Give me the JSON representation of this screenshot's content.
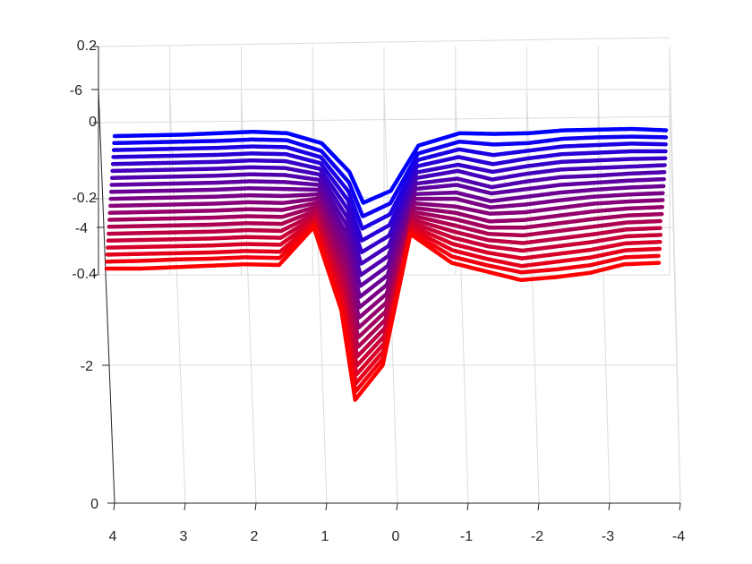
{
  "chart_data": {
    "type": "line",
    "view": "3d",
    "title": "",
    "xlabel": "",
    "ylabel": "",
    "zlabel": "",
    "grid": true,
    "x_range": [
      -4,
      4
    ],
    "y_range": [
      0,
      6
    ],
    "z_range": [
      -0.4,
      0.2
    ],
    "x_ticks": [
      4,
      3,
      2,
      1,
      0,
      -1,
      -2,
      -3,
      -4
    ],
    "x_tick_labels": [
      "4",
      "3",
      "2",
      "1",
      "0",
      "-1",
      "-2",
      "-3",
      "-4"
    ],
    "y_ticks": [
      0,
      2,
      4,
      6
    ],
    "y_tick_labels": [
      "0",
      "-2",
      "-4",
      "-6"
    ],
    "z_ticks": [
      0.2,
      0,
      -0.2,
      -0.4
    ],
    "z_tick_labels": [
      "0.2",
      "0",
      "-0.2",
      "-0.4"
    ],
    "color_start": "#0000ff",
    "color_end": "#ff0000",
    "series_count": 20,
    "x": [
      4,
      3.5,
      3,
      2.5,
      2,
      1.5,
      1,
      0.6,
      0.4,
      0,
      -0.4,
      -1,
      -1.5,
      -2,
      -2.5,
      -3,
      -3.5,
      -4
    ],
    "series": [
      {
        "y": 0.0,
        "values": [
          -0.02,
          -0.015,
          -0.01,
          0.0,
          0.01,
          0.0,
          -0.05,
          -0.17,
          -0.3,
          -0.25,
          -0.06,
          0.0,
          -0.005,
          0.0,
          0.02,
          0.025,
          0.03,
          0.02
        ]
      },
      {
        "y": 0.3,
        "values": [
          -0.03,
          -0.025,
          -0.02,
          -0.015,
          -0.005,
          -0.01,
          -0.06,
          -0.18,
          -0.31,
          -0.26,
          -0.07,
          -0.02,
          -0.04,
          -0.03,
          0.0,
          0.01,
          0.015,
          0.01
        ]
      },
      {
        "y": 0.6,
        "values": [
          -0.045,
          -0.04,
          -0.035,
          -0.03,
          -0.02,
          -0.025,
          -0.07,
          -0.19,
          -0.32,
          -0.27,
          -0.08,
          -0.04,
          -0.08,
          -0.05,
          -0.02,
          -0.01,
          0.0,
          -0.005
        ]
      },
      {
        "y": 0.9,
        "values": [
          -0.06,
          -0.055,
          -0.05,
          -0.045,
          -0.035,
          -0.04,
          -0.08,
          -0.2,
          -0.33,
          -0.28,
          -0.09,
          -0.06,
          -0.11,
          -0.07,
          -0.04,
          -0.03,
          -0.02,
          -0.02
        ]
      },
      {
        "y": 1.2,
        "values": [
          -0.075,
          -0.07,
          -0.065,
          -0.06,
          -0.05,
          -0.055,
          -0.09,
          -0.21,
          -0.34,
          -0.29,
          -0.1,
          -0.08,
          -0.13,
          -0.09,
          -0.06,
          -0.05,
          -0.04,
          -0.035
        ]
      },
      {
        "y": 1.5,
        "values": [
          -0.09,
          -0.085,
          -0.08,
          -0.075,
          -0.065,
          -0.07,
          -0.1,
          -0.22,
          -0.35,
          -0.3,
          -0.11,
          -0.09,
          -0.15,
          -0.11,
          -0.08,
          -0.07,
          -0.06,
          -0.05
        ]
      },
      {
        "y": 1.8,
        "values": [
          -0.105,
          -0.1,
          -0.095,
          -0.09,
          -0.08,
          -0.085,
          -0.11,
          -0.23,
          -0.36,
          -0.31,
          -0.12,
          -0.11,
          -0.17,
          -0.13,
          -0.1,
          -0.09,
          -0.075,
          -0.065
        ]
      },
      {
        "y": 2.1,
        "values": [
          -0.12,
          -0.115,
          -0.11,
          -0.105,
          -0.095,
          -0.1,
          -0.12,
          -0.24,
          -0.37,
          -0.32,
          -0.13,
          -0.12,
          -0.18,
          -0.15,
          -0.12,
          -0.105,
          -0.09,
          -0.08
        ]
      },
      {
        "y": 2.4,
        "values": [
          -0.135,
          -0.13,
          -0.125,
          -0.12,
          -0.11,
          -0.115,
          -0.13,
          -0.25,
          -0.38,
          -0.33,
          -0.14,
          -0.14,
          -0.2,
          -0.17,
          -0.14,
          -0.12,
          -0.105,
          -0.095
        ]
      },
      {
        "y": 2.7,
        "values": [
          -0.15,
          -0.145,
          -0.14,
          -0.135,
          -0.125,
          -0.13,
          -0.14,
          -0.26,
          -0.39,
          -0.34,
          -0.15,
          -0.15,
          -0.21,
          -0.19,
          -0.16,
          -0.135,
          -0.12,
          -0.11
        ]
      },
      {
        "y": 3.0,
        "values": [
          -0.165,
          -0.16,
          -0.155,
          -0.15,
          -0.14,
          -0.145,
          -0.15,
          -0.27,
          -0.4,
          -0.35,
          -0.16,
          -0.17,
          -0.22,
          -0.21,
          -0.18,
          -0.15,
          -0.135,
          -0.125
        ]
      },
      {
        "y": 3.3,
        "values": [
          -0.18,
          -0.175,
          -0.17,
          -0.165,
          -0.155,
          -0.16,
          -0.16,
          -0.28,
          -0.41,
          -0.36,
          -0.17,
          -0.18,
          -0.24,
          -0.23,
          -0.2,
          -0.17,
          -0.15,
          -0.14
        ]
      },
      {
        "y": 3.6,
        "values": [
          -0.195,
          -0.19,
          -0.185,
          -0.18,
          -0.17,
          -0.175,
          -0.17,
          -0.29,
          -0.42,
          -0.37,
          -0.18,
          -0.19,
          -0.25,
          -0.25,
          -0.22,
          -0.19,
          -0.165,
          -0.155
        ]
      },
      {
        "y": 3.9,
        "values": [
          -0.21,
          -0.205,
          -0.2,
          -0.195,
          -0.185,
          -0.19,
          -0.18,
          -0.3,
          -0.43,
          -0.38,
          -0.19,
          -0.2,
          -0.26,
          -0.27,
          -0.24,
          -0.21,
          -0.18,
          -0.17
        ]
      },
      {
        "y": 4.2,
        "values": [
          -0.225,
          -0.22,
          -0.215,
          -0.21,
          -0.2,
          -0.205,
          -0.19,
          -0.31,
          -0.44,
          -0.39,
          -0.2,
          -0.21,
          -0.27,
          -0.29,
          -0.26,
          -0.23,
          -0.195,
          -0.185
        ]
      },
      {
        "y": 4.5,
        "values": [
          -0.24,
          -0.235,
          -0.23,
          -0.225,
          -0.215,
          -0.22,
          -0.2,
          -0.32,
          -0.45,
          -0.4,
          -0.21,
          -0.22,
          -0.28,
          -0.31,
          -0.28,
          -0.25,
          -0.21,
          -0.2
        ]
      },
      {
        "y": 4.8,
        "values": [
          -0.255,
          -0.25,
          -0.245,
          -0.24,
          -0.23,
          -0.235,
          -0.21,
          -0.33,
          -0.46,
          -0.41,
          -0.22,
          -0.23,
          -0.29,
          -0.33,
          -0.3,
          -0.27,
          -0.225,
          -0.215
        ]
      },
      {
        "y": 5.1,
        "values": [
          -0.27,
          -0.265,
          -0.26,
          -0.255,
          -0.245,
          -0.25,
          -0.22,
          -0.34,
          -0.47,
          -0.42,
          -0.23,
          -0.24,
          -0.3,
          -0.35,
          -0.32,
          -0.29,
          -0.24,
          -0.23
        ]
      },
      {
        "y": 5.4,
        "values": [
          -0.285,
          -0.28,
          -0.27,
          -0.265,
          -0.255,
          -0.26,
          -0.23,
          -0.35,
          -0.48,
          -0.43,
          -0.24,
          -0.25,
          -0.31,
          -0.36,
          -0.34,
          -0.31,
          -0.255,
          -0.245
        ]
      },
      {
        "y": 5.7,
        "values": [
          -0.3,
          -0.3,
          -0.29,
          -0.28,
          -0.27,
          -0.275,
          -0.24,
          -0.36,
          -0.49,
          -0.44,
          -0.25,
          -0.26,
          -0.32,
          -0.38,
          -0.36,
          -0.33,
          -0.27,
          -0.26
        ]
      }
    ]
  }
}
